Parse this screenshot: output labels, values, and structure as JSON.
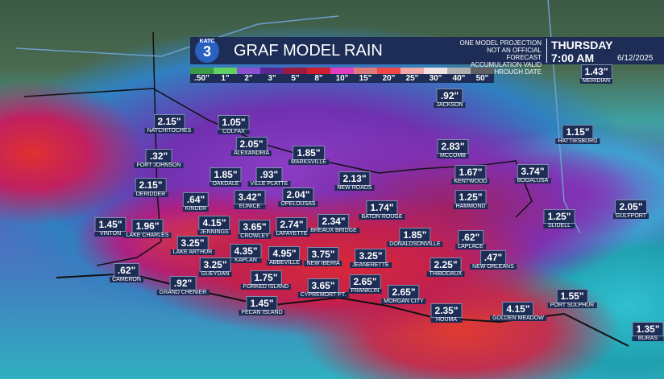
{
  "header": {
    "logo": "KATC",
    "logo_number": "3",
    "title": "GRAF MODEL RAIN",
    "notes": [
      "ONE MODEL PROJECTION",
      "NOT AN OFFICIAL FORECAST",
      "ACCUMULATION VALID THROUGH DATE"
    ],
    "day": "THURSDAY",
    "time": "7:00 AM",
    "date": "6/12/2025"
  },
  "legend": [
    ".50\"",
    "1\"",
    "2\"",
    "3\"",
    "5\"",
    "8\"",
    "10\"",
    "15\"",
    "20\"",
    "25\"",
    "30\"",
    "40\"",
    "50\""
  ],
  "cities": [
    {
      "amount": "2.15\"",
      "name": "NATCHITOCHES"
    },
    {
      "amount": "1.05\"",
      "name": "COLFAX"
    },
    {
      "amount": ".92\"",
      "name": "JACKSON"
    },
    {
      "amount": "2.05\"",
      "name": "ALEXANDRIA"
    },
    {
      "amount": "1.85\"",
      "name": "MARKSVILLE"
    },
    {
      "amount": "2.83\"",
      "name": "MCCOMB"
    },
    {
      "amount": "1.15\"",
      "name": "HATTIESBURG"
    },
    {
      "amount": "1.43\"",
      "name": "MERIDIAN"
    },
    {
      "amount": ".32\"",
      "name": "FORT JOHNSON"
    },
    {
      "amount": "1.85\"",
      "name": "OAKDALE"
    },
    {
      "amount": ".93\"",
      "name": "VILLE PLATTE"
    },
    {
      "amount": "2.13\"",
      "name": "NEW ROADS"
    },
    {
      "amount": "1.67\"",
      "name": "KENTWOOD"
    },
    {
      "amount": "3.74\"",
      "name": "BOGALUSA"
    },
    {
      "amount": "2.15\"",
      "name": "DERIDDER"
    },
    {
      "amount": ".64\"",
      "name": "KINDER"
    },
    {
      "amount": "3.42\"",
      "name": "EUNICE"
    },
    {
      "amount": "2.04\"",
      "name": "OPELOUSAS"
    },
    {
      "amount": "1.25\"",
      "name": "HAMMOND"
    },
    {
      "amount": "1.74\"",
      "name": "BATON ROUGE"
    },
    {
      "amount": "2.34\"",
      "name": "BREAUX BRIDGE"
    },
    {
      "amount": "1.45\"",
      "name": "VINTON"
    },
    {
      "amount": "1.96\"",
      "name": "LAKE CHARLES"
    },
    {
      "amount": "4.15\"",
      "name": "JENNINGS"
    },
    {
      "amount": "3.65\"",
      "name": "CROWLEY"
    },
    {
      "amount": "2.74\"",
      "name": "LAFAYETTE"
    },
    {
      "amount": "1.25\"",
      "name": "SLIDELL"
    },
    {
      "amount": "2.05\"",
      "name": "GULFPORT"
    },
    {
      "amount": "1.85\"",
      "name": "DONALDSONVILLE"
    },
    {
      "amount": ".62\"",
      "name": "LAPLACE"
    },
    {
      "amount": "3.25\"",
      "name": "LAKE ARTHUR"
    },
    {
      "amount": "4.35\"",
      "name": "KAPLAN"
    },
    {
      "amount": "4.95\"",
      "name": "ABBEVILLE"
    },
    {
      "amount": "3.75\"",
      "name": "NEW IBERIA"
    },
    {
      "amount": "3.25\"",
      "name": "JEANERETTE"
    },
    {
      "amount": ".47\"",
      "name": "NEW ORLEANS"
    },
    {
      "amount": "2.25\"",
      "name": "THIBODAUX"
    },
    {
      "amount": "3.25\"",
      "name": "GUEYDAN"
    },
    {
      "amount": ".62\"",
      "name": "CAMERON"
    },
    {
      "amount": ".92\"",
      "name": "GRAND CHENIER"
    },
    {
      "amount": "1.75\"",
      "name": "FORKED ISLAND"
    },
    {
      "amount": "3.65\"",
      "name": "CYPREMORT PT."
    },
    {
      "amount": "2.65\"",
      "name": "FRANKLIN"
    },
    {
      "amount": "2.65\"",
      "name": "MORGAN CITY"
    },
    {
      "amount": "1.45\"",
      "name": "PECAN ISLAND"
    },
    {
      "amount": "2.35\"",
      "name": "HOUMA"
    },
    {
      "amount": "4.15\"",
      "name": "GOLDEN MEADOW"
    },
    {
      "amount": "1.55\"",
      "name": "PORT SULPHUR"
    },
    {
      "amount": "1.35\"",
      "name": "BURAS"
    }
  ]
}
